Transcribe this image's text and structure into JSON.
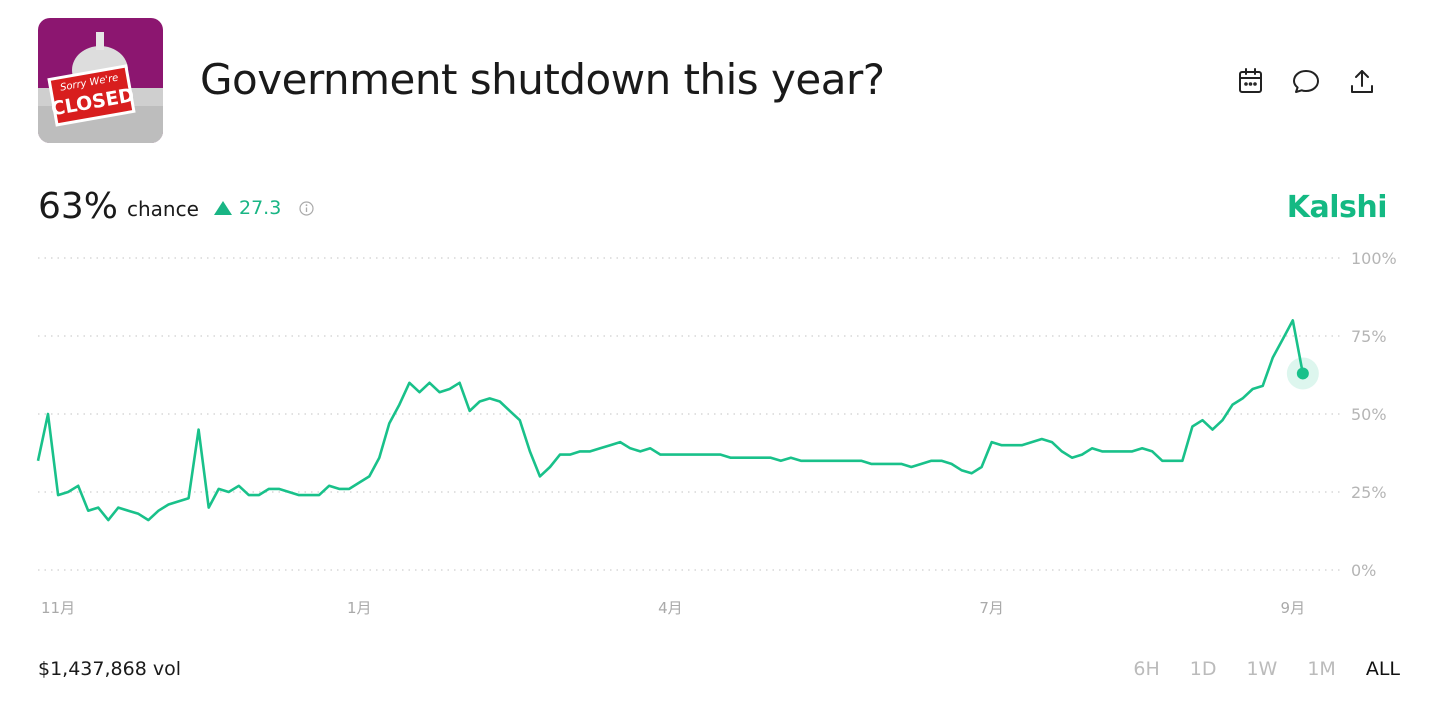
{
  "header": {
    "title": "Government shutdown this year?",
    "thumbnail": {
      "sign_top": "Sorry We're",
      "sign": "CLOSED"
    }
  },
  "summary": {
    "chance_value": "63%",
    "chance_label": "chance",
    "change": "27.3",
    "brand": "Kalshi"
  },
  "chart_data": {
    "type": "line",
    "color": "#19c18a",
    "grid": true,
    "xlim": [
      0,
      130
    ],
    "xticks": [
      {
        "value": 2,
        "label": "11月"
      },
      {
        "value": 32,
        "label": "1月"
      },
      {
        "value": 63,
        "label": "4月"
      },
      {
        "value": 95,
        "label": "7月"
      },
      {
        "value": 125,
        "label": "9月"
      }
    ],
    "ylim": [
      0,
      100
    ],
    "yticks": [
      {
        "value": 0,
        "label": "0%"
      },
      {
        "value": 25,
        "label": "25%"
      },
      {
        "value": 50,
        "label": "50%"
      },
      {
        "value": 75,
        "label": "75%"
      },
      {
        "value": 100,
        "label": "100%"
      }
    ],
    "values": [
      35,
      50,
      24,
      25,
      27,
      19,
      20,
      16,
      20,
      19,
      18,
      16,
      19,
      21,
      22,
      23,
      45,
      20,
      26,
      25,
      27,
      24,
      24,
      26,
      26,
      25,
      24,
      24,
      24,
      27,
      26,
      26,
      28,
      30,
      36,
      47,
      53,
      60,
      57,
      60,
      57,
      58,
      60,
      51,
      54,
      55,
      54,
      51,
      48,
      38,
      30,
      33,
      37,
      37,
      38,
      38,
      39,
      40,
      41,
      39,
      38,
      39,
      37,
      37,
      37,
      37,
      37,
      37,
      37,
      36,
      36,
      36,
      36,
      36,
      35,
      36,
      35,
      35,
      35,
      35,
      35,
      35,
      35,
      34,
      34,
      34,
      34,
      33,
      34,
      35,
      35,
      34,
      32,
      31,
      33,
      41,
      40,
      40,
      40,
      41,
      42,
      41,
      38,
      36,
      37,
      39,
      38,
      38,
      38,
      38,
      39,
      38,
      35,
      35,
      35,
      46,
      48,
      45,
      48,
      53,
      55,
      58,
      59,
      68,
      74,
      80,
      63
    ]
  },
  "footer": {
    "volume": "$1,437,868 vol",
    "ranges": [
      "6H",
      "1D",
      "1W",
      "1M",
      "ALL"
    ]
  }
}
